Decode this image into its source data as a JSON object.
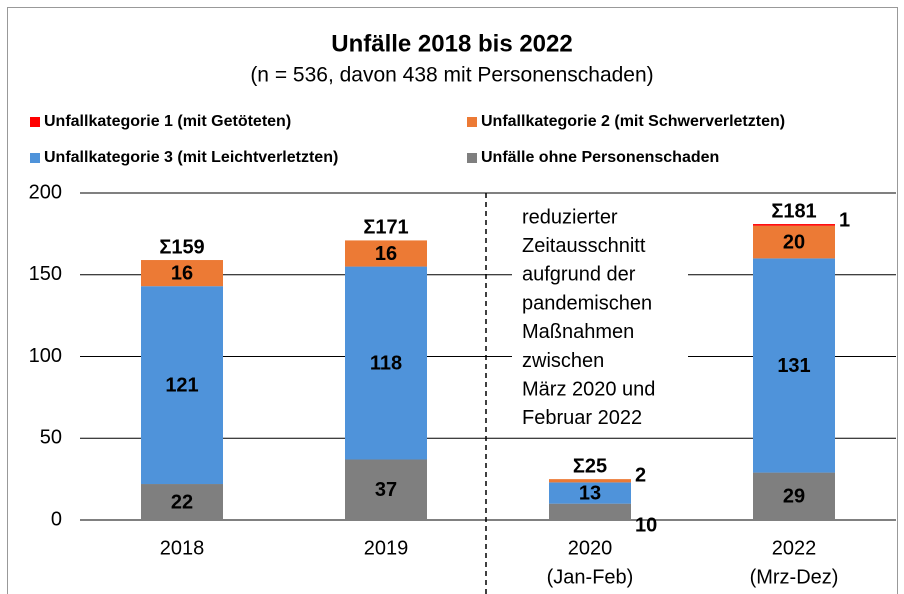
{
  "chart_data": {
    "type": "stacked_bar",
    "title": "Unfälle 2018 bis 2022",
    "subtitle": "(n = 536, davon 438 mit Personenschaden)",
    "categories": [
      "2018",
      "2019",
      "2020",
      "2022"
    ],
    "category_sublabels": [
      null,
      null,
      "(Jan-Feb)",
      "(Mrz-Dez)"
    ],
    "series": [
      {
        "name": "Unfälle ohne Personenschaden",
        "color": "#7f7f7f",
        "label_color": "#ffffff",
        "values": [
          22,
          37,
          10,
          29
        ]
      },
      {
        "name": "Unfallkategorie 3 (mit Leichtverletzten)",
        "color": "#4f93da",
        "label_color": "#ffffff",
        "values": [
          121,
          118,
          13,
          131
        ]
      },
      {
        "name": "Unfallkategorie 2 (mit Schwerverletzten)",
        "color": "#ec7a35",
        "label_color": "#000000",
        "values": [
          16,
          16,
          2,
          20
        ]
      },
      {
        "name": "Unfallkategorie 1 (mit Getöteten)",
        "color": "#ff0000",
        "label_color": "#000000",
        "values": [
          0,
          0,
          0,
          1
        ]
      }
    ],
    "legend_order": [
      3,
      2,
      1,
      0
    ],
    "totals": [
      159,
      171,
      25,
      181
    ],
    "total_labels": [
      "Σ159",
      "Σ171",
      "Σ25",
      "Σ181"
    ],
    "annotation": [
      "reduzierter",
      "Zeitausschnitt",
      "aufgrund der",
      "pandemischen",
      "Maßnahmen",
      "zwischen",
      "März 2020 und",
      "Februar 2022"
    ],
    "ylim": [
      0,
      200
    ],
    "yticks": [
      0,
      50,
      100,
      150,
      200
    ],
    "grid": true
  }
}
